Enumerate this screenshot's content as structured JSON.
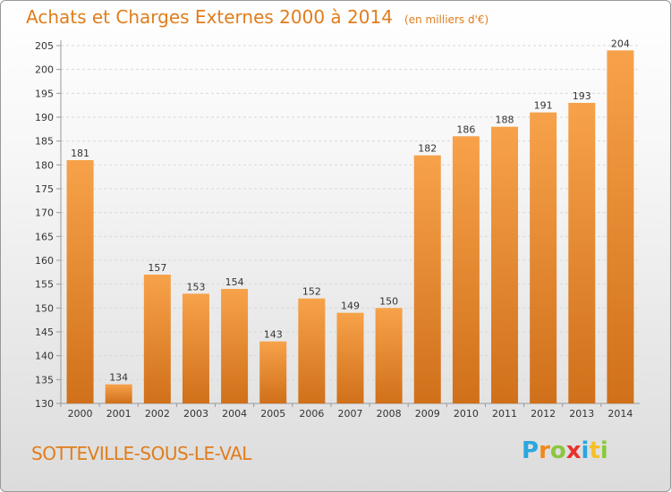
{
  "header": {
    "title": "Achats et Charges Externes 2000 à 2014",
    "subtitle": "(en milliers d'€)"
  },
  "footer": {
    "place": "SOTTEVILLE-SOUS-LE-VAL",
    "logo_letters": [
      "P",
      "r",
      "o",
      "x",
      "i",
      "t",
      "i"
    ],
    "logo_colors": [
      "#2aa7de",
      "#f08a1a",
      "#8cc63f",
      "#e8322b",
      "#2aa7de",
      "#f5c02a",
      "#8cc63f"
    ]
  },
  "chart_data": {
    "type": "bar",
    "title": "Achats et Charges Externes 2000 à 2014",
    "subtitle": "(en milliers d'€)",
    "xlabel": "",
    "ylabel": "",
    "categories": [
      "2000",
      "2001",
      "2002",
      "2003",
      "2004",
      "2005",
      "2006",
      "2007",
      "2008",
      "2009",
      "2010",
      "2011",
      "2012",
      "2013",
      "2014"
    ],
    "values": [
      181,
      134,
      157,
      153,
      154,
      143,
      152,
      149,
      150,
      182,
      186,
      188,
      191,
      193,
      204
    ],
    "ylim": [
      130,
      205
    ],
    "yticks": [
      130,
      135,
      140,
      145,
      150,
      155,
      160,
      165,
      170,
      175,
      180,
      185,
      190,
      195,
      200,
      205
    ],
    "grid": true,
    "bar_color_light": "#f7a24a",
    "bar_color_dark": "#d0701a"
  }
}
